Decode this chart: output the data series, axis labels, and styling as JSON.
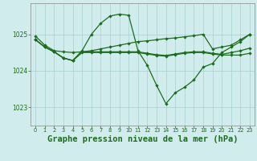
{
  "background_color": "#d0ecec",
  "grid_color": "#a8cece",
  "line_color": "#1a6e1a",
  "xlabel": "Graphe pression niveau de la mer (hPa)",
  "xlabel_fontsize": 7.5,
  "yticks": [
    1023,
    1024,
    1025
  ],
  "xticks": [
    0,
    1,
    2,
    3,
    4,
    5,
    6,
    7,
    8,
    9,
    10,
    11,
    12,
    13,
    14,
    15,
    16,
    17,
    18,
    19,
    20,
    21,
    22,
    23
  ],
  "xlim": [
    -0.5,
    23.5
  ],
  "ylim": [
    1022.5,
    1025.85
  ],
  "line1_x": [
    0,
    1,
    2,
    3,
    4,
    5,
    6,
    7,
    8,
    9,
    10,
    11,
    12,
    13,
    14,
    15,
    16,
    17,
    18,
    19,
    20,
    21,
    22,
    23
  ],
  "line1_y": [
    1024.95,
    1024.7,
    1024.55,
    1024.52,
    1024.5,
    1024.52,
    1024.55,
    1024.6,
    1024.65,
    1024.7,
    1024.75,
    1024.8,
    1024.82,
    1024.85,
    1024.88,
    1024.9,
    1024.93,
    1024.96,
    1025.0,
    1024.6,
    1024.65,
    1024.7,
    1024.85,
    1025.0
  ],
  "line2_x": [
    0,
    1,
    2,
    3,
    4,
    5,
    6,
    7,
    8,
    9,
    10,
    11,
    12,
    13,
    14,
    15,
    16,
    17,
    18,
    19,
    20,
    21,
    22,
    23
  ],
  "line2_y": [
    1024.85,
    1024.65,
    1024.52,
    1024.35,
    1024.28,
    1024.55,
    1025.0,
    1025.3,
    1025.5,
    1025.55,
    1025.52,
    1024.55,
    1024.15,
    1023.6,
    1023.1,
    1023.4,
    1023.55,
    1023.75,
    1024.1,
    1024.2,
    1024.5,
    1024.65,
    1024.8,
    1025.0
  ],
  "line3_x": [
    0,
    1,
    2,
    3,
    4,
    5,
    6,
    7,
    8,
    9,
    10,
    11,
    12,
    13,
    14,
    15,
    16,
    17,
    18,
    19,
    20,
    21,
    22,
    23
  ],
  "line3_y": [
    1024.85,
    1024.65,
    1024.52,
    1024.35,
    1024.28,
    1024.52,
    1024.52,
    1024.52,
    1024.52,
    1024.52,
    1024.52,
    1024.52,
    1024.48,
    1024.44,
    1024.42,
    1024.46,
    1024.5,
    1024.52,
    1024.52,
    1024.48,
    1024.45,
    1024.5,
    1024.55,
    1024.62
  ],
  "line4_x": [
    0,
    1,
    2,
    3,
    4,
    5,
    6,
    7,
    8,
    9,
    10,
    11,
    12,
    13,
    14,
    15,
    16,
    17,
    18,
    19,
    20,
    21,
    22,
    23
  ],
  "line4_y": [
    1024.85,
    1024.65,
    1024.52,
    1024.35,
    1024.28,
    1024.5,
    1024.5,
    1024.5,
    1024.5,
    1024.5,
    1024.5,
    1024.5,
    1024.46,
    1024.42,
    1024.4,
    1024.44,
    1024.48,
    1024.5,
    1024.5,
    1024.46,
    1024.43,
    1024.43,
    1024.43,
    1024.48
  ]
}
